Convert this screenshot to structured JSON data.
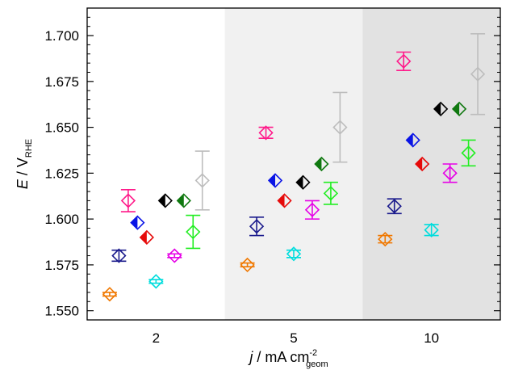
{
  "chart_data": {
    "type": "scatter",
    "title": "",
    "xlabel": {
      "main": "j",
      "rest": " / mA cm",
      "sup": "-2",
      "sub": "geom"
    },
    "ylabel": {
      "main": "E",
      "rest": " / V",
      "sub": "RHE"
    },
    "categories": [
      "2",
      "5",
      "10"
    ],
    "ylim": [
      1.545,
      1.715
    ],
    "yticks": [
      "1.550",
      "1.575",
      "1.600",
      "1.625",
      "1.650",
      "1.675",
      "1.700"
    ],
    "band_colors": [
      "#ffffff",
      "#f1f1f1",
      "#e2e2e2"
    ],
    "series": [
      {
        "color": "#f07800",
        "marker": "open",
        "values": [
          1.559,
          1.575,
          1.589
        ],
        "err": [
          0.001,
          0.001,
          0.002
        ]
      },
      {
        "color": "#1a1a8c",
        "marker": "open",
        "values": [
          1.58,
          1.596,
          1.607
        ],
        "err": [
          0.003,
          0.005,
          0.004
        ]
      },
      {
        "color": "#ff1a8a",
        "marker": "open",
        "values": [
          1.61,
          1.647,
          1.686
        ],
        "err": [
          0.006,
          0.003,
          0.005
        ]
      },
      {
        "color": "#0a14e6",
        "marker": "half",
        "values": [
          1.598,
          1.621,
          1.643
        ],
        "err": null
      },
      {
        "color": "#e60a0a",
        "marker": "half",
        "values": [
          1.59,
          1.61,
          1.63
        ],
        "err": null
      },
      {
        "color": "#00dddd",
        "marker": "open",
        "values": [
          1.566,
          1.581,
          1.594
        ],
        "err": [
          0.001,
          0.002,
          0.003
        ]
      },
      {
        "color": "#000000",
        "marker": "half",
        "values": [
          1.61,
          1.62,
          1.66
        ],
        "err": null
      },
      {
        "color": "#e600e6",
        "marker": "open",
        "values": [
          1.58,
          1.605,
          1.625
        ],
        "err": [
          0.001,
          0.005,
          0.005
        ]
      },
      {
        "color": "#0f780f",
        "marker": "half",
        "values": [
          1.61,
          1.63,
          1.66
        ],
        "err": null
      },
      {
        "color": "#22ee22",
        "marker": "open",
        "values": [
          1.593,
          1.614,
          1.636
        ],
        "err": [
          0.009,
          0.006,
          0.007
        ]
      },
      {
        "color": "#bdbdbd",
        "marker": "open",
        "values": [
          1.621,
          1.65,
          1.679
        ],
        "err": [
          0.016,
          0.019,
          0.022
        ]
      }
    ]
  }
}
